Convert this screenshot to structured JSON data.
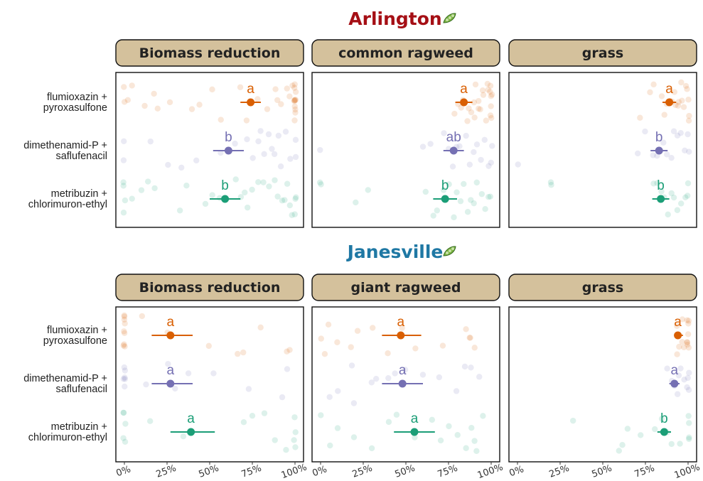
{
  "chart_data": {
    "type": "scatter",
    "treatments": [
      [
        "flumioxazin +",
        "pyroxasulfone"
      ],
      [
        "dimethenamid-P +",
        "saflufenacil"
      ],
      [
        "metribuzin +",
        "chlorimuron-ethyl"
      ]
    ],
    "colors": [
      "#d95f02",
      "#7570b3",
      "#1b9e77"
    ],
    "strip_fill": "#d4c19c",
    "title_colors": {
      "Arlington": "#a50f15",
      "Janesville": "#1f78a4"
    },
    "x_ticks": [
      "0%",
      "25%",
      "50%",
      "75%",
      "100%"
    ],
    "xlim": [
      -5,
      105
    ],
    "sites": [
      {
        "title": "Arlington",
        "icon": "soybean-icon",
        "panels": [
          {
            "strip": "Biomass reduction",
            "summary": [
              {
                "mean": 74,
                "low": 68,
                "high": 80,
                "letter": "a"
              },
              {
                "mean": 61,
                "low": 52,
                "high": 70,
                "letter": "b"
              },
              {
                "mean": 59,
                "low": 50,
                "high": 68,
                "letter": "b"
              }
            ],
            "points": [
              [
                0,
                0,
                2,
                4,
                12,
                17,
                20,
                27,
                40,
                44,
                52,
                56,
                68,
                72,
                78,
                84,
                88,
                90,
                92,
                95,
                97,
                98,
                100,
                100,
                100,
                100,
                100,
                100,
                100,
                100,
                100,
                100,
                100,
                100
              ],
              [
                0,
                0,
                15,
                25,
                33,
                42,
                57,
                65,
                72,
                75,
                78,
                80,
                82,
                84,
                86,
                88,
                90,
                92,
                95,
                97,
                100,
                100
              ],
              [
                0,
                0,
                0,
                0,
                5,
                10,
                14,
                18,
                33,
                37,
                48,
                52,
                56,
                65,
                68,
                70,
                72,
                75,
                78,
                82,
                85,
                88,
                90,
                92,
                94,
                95,
                97,
                98,
                100,
                100,
                100
              ]
            ]
          },
          {
            "strip": "common ragweed",
            "summary": [
              {
                "mean": 84,
                "low": 79,
                "high": 89,
                "letter": "a"
              },
              {
                "mean": 78,
                "low": 72,
                "high": 84,
                "letter": "ab"
              },
              {
                "mean": 73,
                "low": 66,
                "high": 80,
                "letter": "b"
              }
            ],
            "points": [
              [
                78,
                80,
                82,
                84,
                86,
                87,
                88,
                90,
                90,
                91,
                92,
                93,
                94,
                95,
                96,
                97,
                98,
                98,
                99,
                100,
                100,
                100,
                100,
                100,
                100
              ],
              [
                0,
                60,
                65,
                72,
                75,
                78,
                80,
                82,
                85,
                88,
                90,
                92,
                94,
                96,
                98,
                100,
                100
              ],
              [
                0,
                0,
                20,
                28,
                62,
                66,
                68,
                72,
                75,
                78,
                80,
                82,
                84,
                86,
                88,
                90,
                92,
                94,
                96,
                98,
                100
              ]
            ]
          },
          {
            "strip": "grass",
            "summary": [
              {
                "mean": 89,
                "low": 85,
                "high": 93,
                "letter": "a"
              },
              {
                "mean": 83,
                "low": 78,
                "high": 88,
                "letter": "b"
              },
              {
                "mean": 84,
                "low": 79,
                "high": 89,
                "letter": "b"
              }
            ],
            "points": [
              [
                72,
                78,
                80,
                84,
                86,
                88,
                90,
                91,
                92,
                93,
                94,
                95,
                96,
                97,
                98,
                99,
                100,
                100,
                100,
                100
              ],
              [
                0,
                70,
                75,
                80,
                82,
                85,
                88,
                90,
                92,
                94,
                96,
                98,
                100,
                100
              ],
              [
                20,
                20,
                80,
                82,
                84,
                86,
                88,
                90,
                92,
                94,
                96,
                98,
                100,
                100
              ]
            ]
          }
        ]
      },
      {
        "title": "Janesville",
        "icon": "soybean-icon",
        "panels": [
          {
            "strip": "Biomass reduction",
            "summary": [
              {
                "mean": 27,
                "low": 16,
                "high": 40,
                "letter": "a"
              },
              {
                "mean": 27,
                "low": 16,
                "high": 40,
                "letter": "a"
              },
              {
                "mean": 39,
                "low": 27,
                "high": 53,
                "letter": "a"
              }
            ],
            "points": [
              [
                0,
                0,
                0,
                0,
                0,
                0,
                0,
                0,
                0,
                10,
                25,
                50,
                66,
                70,
                80,
                95,
                97
              ],
              [
                0,
                0,
                0,
                0,
                0,
                0,
                13,
                25,
                30,
                37,
                52,
                73,
                93,
                96
              ],
              [
                0,
                0,
                0,
                0,
                0,
                15,
                35,
                70,
                75,
                82,
                88,
                95,
                100,
                100,
                100,
                100
              ]
            ]
          },
          {
            "strip": "giant ragweed",
            "summary": [
              {
                "mean": 47,
                "low": 36,
                "high": 59,
                "letter": "a"
              },
              {
                "mean": 48,
                "low": 36,
                "high": 60,
                "letter": "a"
              },
              {
                "mean": 55,
                "low": 43,
                "high": 67,
                "letter": "a"
              }
            ],
            "points": [
              [
                0,
                2,
                5,
                10,
                18,
                22,
                30,
                40,
                48,
                55,
                72,
                85,
                87,
                88,
                90
              ],
              [
                5,
                10,
                18,
                20,
                30,
                33,
                40,
                44,
                50,
                60,
                70,
                80,
                85,
                88,
                93
              ],
              [
                0,
                5,
                10,
                20,
                30,
                40,
                45,
                55,
                65,
                70,
                75,
                80,
                85,
                88,
                90,
                92,
                95
              ]
            ]
          },
          {
            "strip": "grass",
            "summary": [
              {
                "mean": 94,
                "low": 92,
                "high": 97,
                "letter": "a"
              },
              {
                "mean": 92,
                "low": 89,
                "high": 95,
                "letter": "a"
              },
              {
                "mean": 86,
                "low": 82,
                "high": 90,
                "letter": "b"
              }
            ],
            "points": [
              [
                93,
                94,
                95,
                96,
                97,
                98,
                99,
                100,
                100,
                100,
                100,
                100,
                100,
                100
              ],
              [
                88,
                90,
                92,
                94,
                95,
                96,
                98,
                100,
                100,
                100,
                100
              ],
              [
                33,
                60,
                62,
                65,
                72,
                80,
                85,
                88,
                90,
                95,
                100,
                100,
                100,
                100
              ]
            ]
          }
        ]
      }
    ]
  }
}
